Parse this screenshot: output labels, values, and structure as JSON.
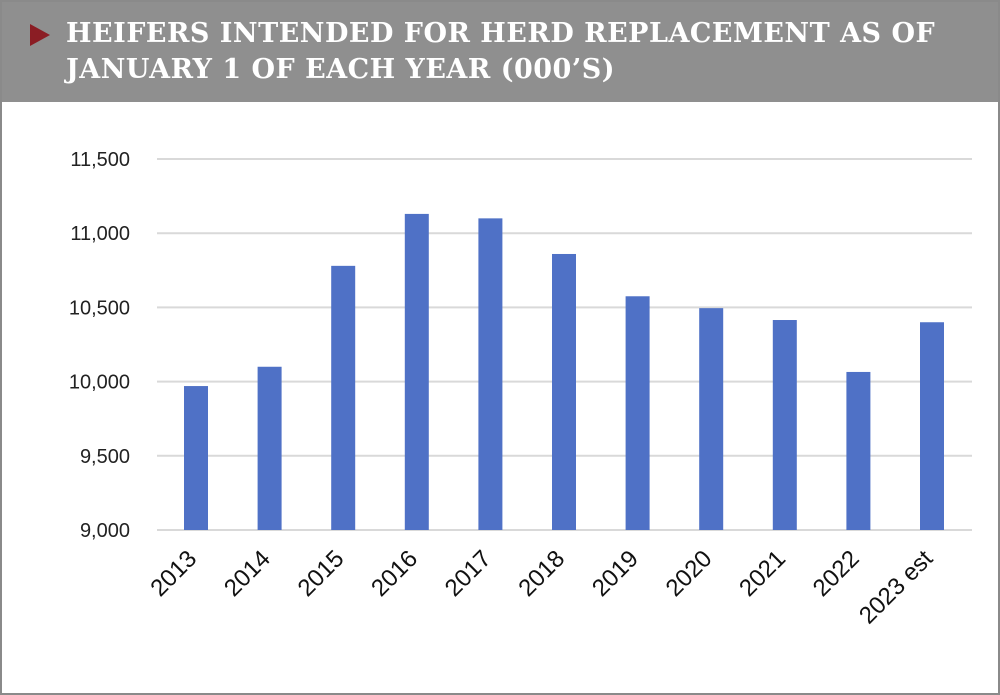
{
  "header": {
    "title": "HEIFERS INTENDED FOR HERD REPLACEMENT AS OF JANUARY 1 OF EACH YEAR (000’S)",
    "marker_icon": "triangle-right-icon",
    "marker_color": "#8b1d24",
    "background_color": "#8f8f8f"
  },
  "chart_data": {
    "type": "bar",
    "title": "HEIFERS INTENDED FOR HERD REPLACEMENT AS OF JANUARY 1 OF EACH YEAR (000’S)",
    "categories": [
      "2013",
      "2014",
      "2015",
      "2016",
      "2017",
      "2018",
      "2019",
      "2020",
      "2021",
      "2022",
      "2023 est"
    ],
    "values": [
      9970,
      10100,
      10780,
      11130,
      11100,
      10860,
      10575,
      10495,
      10415,
      10065,
      10400
    ],
    "ylim": [
      9000,
      11500
    ],
    "yticks": [
      9000,
      9500,
      10000,
      10500,
      11000,
      11500
    ],
    "ytick_labels": [
      "9,000",
      "9,500",
      "10,000",
      "10,500",
      "11,000",
      "11,500"
    ],
    "xlabel": "",
    "ylabel": "",
    "grid": true,
    "bar_color": "#4f71c6",
    "grid_color": "#d9d9d9"
  }
}
